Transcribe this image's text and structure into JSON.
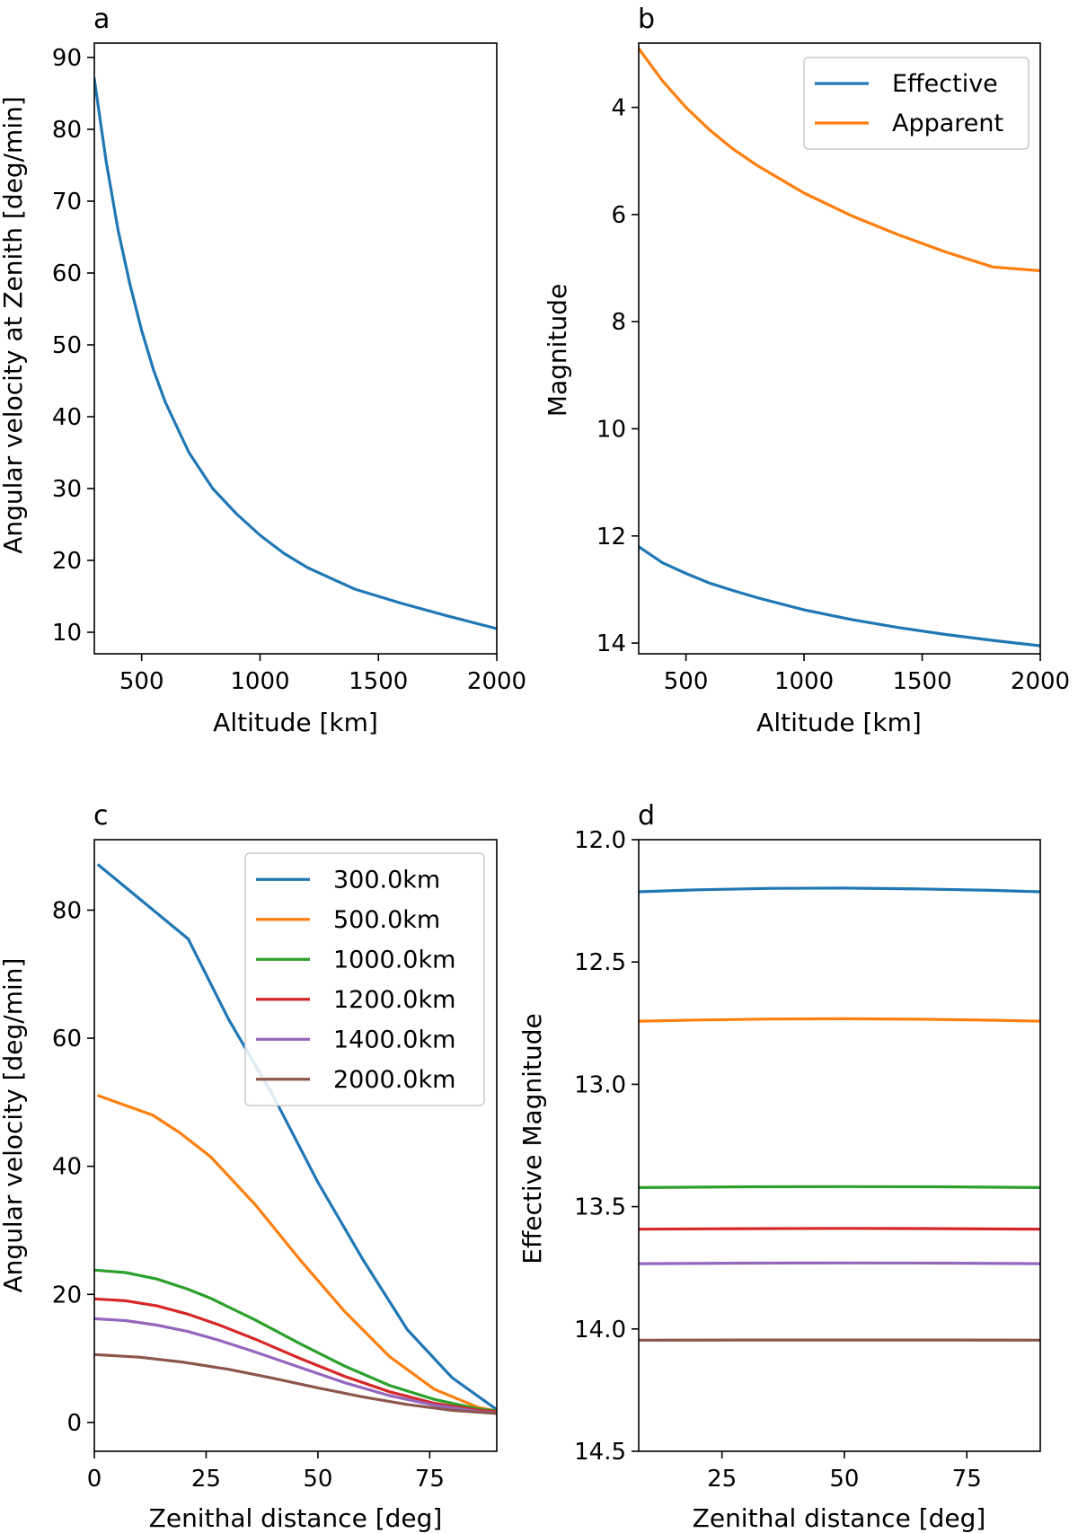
{
  "colors": {
    "blue": "#1f77b4",
    "orange": "#ff7f0e",
    "green": "#2ca02c",
    "red": "#d62728",
    "purple": "#9467bd",
    "brown": "#8c564b"
  },
  "chart_data": [
    {
      "panel": "a",
      "type": "line",
      "xlabel": "Altitude [km]",
      "ylabel": "Angular velocity at Zenith [deg/min]",
      "xlim": [
        300,
        2000
      ],
      "ylim": [
        7,
        92
      ],
      "y_inverted": false,
      "xticks": [
        500,
        1000,
        1500,
        2000
      ],
      "yticks": [
        10,
        20,
        30,
        40,
        50,
        60,
        70,
        80,
        90
      ],
      "legend": null,
      "series": [
        {
          "name": "Angular velocity",
          "color": "blue",
          "x": [
            300,
            350,
            400,
            450,
            500,
            550,
            600,
            700,
            800,
            900,
            1000,
            1100,
            1200,
            1400,
            1600,
            1800,
            2000
          ],
          "y": [
            87,
            75.5,
            66,
            58.5,
            52,
            46.5,
            42,
            35,
            30,
            26.5,
            23.5,
            21,
            19,
            16,
            14,
            12.2,
            10.5
          ]
        }
      ]
    },
    {
      "panel": "b",
      "type": "line",
      "xlabel": "Altitude [km]",
      "ylabel": "Magnitude",
      "xlim": [
        300,
        2000
      ],
      "ylim": [
        2.8,
        14.2
      ],
      "y_inverted": true,
      "xticks": [
        500,
        1000,
        1500,
        2000
      ],
      "yticks": [
        4,
        6,
        8,
        10,
        12,
        14
      ],
      "legend": {
        "position": "top-right",
        "entries": [
          {
            "label": "Effective",
            "color": "blue"
          },
          {
            "label": "Apparent",
            "color": "orange"
          }
        ]
      },
      "series": [
        {
          "name": "Effective",
          "color": "blue",
          "x": [
            300,
            400,
            500,
            600,
            700,
            800,
            1000,
            1200,
            1400,
            1600,
            1800,
            2000
          ],
          "y": [
            12.2,
            12.5,
            12.7,
            12.88,
            13.02,
            13.15,
            13.38,
            13.56,
            13.71,
            13.84,
            13.95,
            14.05
          ]
        },
        {
          "name": "Apparent",
          "color": "orange",
          "x": [
            300,
            400,
            500,
            600,
            700,
            800,
            1000,
            1200,
            1400,
            1600,
            1800,
            2000
          ],
          "y": [
            2.9,
            3.5,
            4.0,
            4.42,
            4.78,
            5.08,
            5.6,
            6.02,
            6.38,
            6.7,
            6.98,
            7.05
          ]
        }
      ]
    },
    {
      "panel": "c",
      "type": "line",
      "xlabel": "Zenithal distance [deg]",
      "ylabel": "Angular velocity [deg/min]",
      "xlim": [
        0,
        90
      ],
      "ylim": [
        -4.5,
        91
      ],
      "y_inverted": false,
      "xticks": [
        0,
        25,
        50,
        75
      ],
      "yticks": [
        0,
        20,
        40,
        60,
        80
      ],
      "legend": {
        "position": "top-right",
        "entries": [
          {
            "label": "300.0km",
            "color": "blue"
          },
          {
            "label": "500.0km",
            "color": "orange"
          },
          {
            "label": "1000.0km",
            "color": "green"
          },
          {
            "label": "1200.0km",
            "color": "red"
          },
          {
            "label": "1400.0km",
            "color": "purple"
          },
          {
            "label": "2000.0km",
            "color": "brown"
          }
        ]
      },
      "series": [
        {
          "name": "300.0km",
          "color": "blue",
          "x": [
            1,
            21,
            30,
            40,
            50,
            60,
            70,
            80,
            90
          ],
          "y": [
            87,
            75.5,
            63,
            51,
            37.5,
            25.5,
            14.5,
            7,
            2
          ]
        },
        {
          "name": "500.0km",
          "color": "orange",
          "x": [
            1,
            13,
            19,
            26,
            36,
            46,
            56,
            66,
            76,
            86,
            90
          ],
          "y": [
            51,
            48,
            45.3,
            41.5,
            34,
            25.4,
            17.3,
            10.3,
            5.2,
            2.3,
            1.8
          ]
        },
        {
          "name": "1000.0km",
          "color": "green",
          "x": [
            0,
            7,
            14,
            21,
            26,
            36,
            46,
            56,
            66,
            76,
            86,
            90
          ],
          "y": [
            23.8,
            23.4,
            22.4,
            20.8,
            19.4,
            16,
            12.3,
            8.8,
            5.8,
            3.6,
            2.1,
            1.8
          ]
        },
        {
          "name": "1200.0km",
          "color": "red",
          "x": [
            0,
            7,
            14,
            21,
            28,
            36,
            46,
            56,
            66,
            76,
            86,
            90
          ],
          "y": [
            19.3,
            19,
            18.2,
            16.9,
            15.2,
            13,
            10,
            7.2,
            4.8,
            3,
            1.9,
            1.7
          ]
        },
        {
          "name": "1400.0km",
          "color": "purple",
          "x": [
            0,
            7,
            14,
            21,
            28,
            36,
            46,
            56,
            66,
            76,
            86,
            90
          ],
          "y": [
            16.2,
            15.9,
            15.2,
            14.2,
            12.8,
            11,
            8.6,
            6.2,
            4.2,
            2.7,
            1.7,
            1.5
          ]
        },
        {
          "name": "2000.0km",
          "color": "brown",
          "x": [
            0,
            10,
            20,
            30,
            40,
            50,
            60,
            70,
            80,
            90
          ],
          "y": [
            10.6,
            10.2,
            9.4,
            8.3,
            6.9,
            5.4,
            4.0,
            2.8,
            1.9,
            1.4
          ]
        }
      ]
    },
    {
      "panel": "d",
      "type": "line",
      "xlabel": "Zenithal distance [deg]",
      "ylabel": "Effective Magnitude",
      "xlim": [
        8,
        90
      ],
      "ylim": [
        12.0,
        14.5
      ],
      "y_inverted": true,
      "xticks": [
        25,
        50,
        75
      ],
      "yticks": [
        12.0,
        12.5,
        13.0,
        13.5,
        14.0,
        14.5
      ],
      "ytick_format": "1dp",
      "legend": null,
      "series": [
        {
          "name": "300.0km",
          "color": "blue",
          "x": [
            8,
            20,
            35,
            50,
            65,
            80,
            90
          ],
          "y": [
            12.213,
            12.205,
            12.199,
            12.198,
            12.201,
            12.207,
            12.213
          ]
        },
        {
          "name": "500.0km",
          "color": "orange",
          "x": [
            8,
            20,
            35,
            50,
            65,
            80,
            90
          ],
          "y": [
            12.742,
            12.737,
            12.733,
            12.732,
            12.734,
            12.738,
            12.742
          ]
        },
        {
          "name": "1000.0km",
          "color": "green",
          "x": [
            8,
            30,
            50,
            70,
            90
          ],
          "y": [
            13.422,
            13.419,
            13.418,
            13.419,
            13.422
          ]
        },
        {
          "name": "1200.0km",
          "color": "red",
          "x": [
            8,
            30,
            50,
            70,
            90
          ],
          "y": [
            13.592,
            13.59,
            13.589,
            13.59,
            13.592
          ]
        },
        {
          "name": "1400.0km",
          "color": "purple",
          "x": [
            8,
            30,
            50,
            70,
            90
          ],
          "y": [
            13.733,
            13.731,
            13.73,
            13.731,
            13.733
          ]
        },
        {
          "name": "2000.0km",
          "color": "brown",
          "x": [
            8,
            30,
            50,
            70,
            90
          ],
          "y": [
            14.046,
            14.045,
            14.045,
            14.045,
            14.046
          ]
        }
      ]
    }
  ]
}
